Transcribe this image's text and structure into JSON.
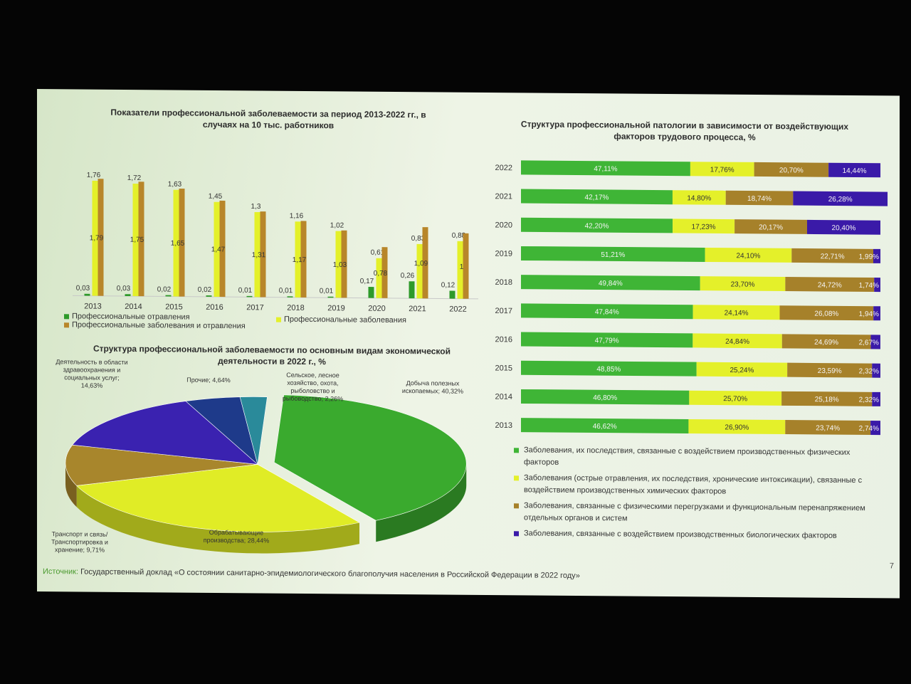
{
  "chart_data": [
    {
      "type": "bar",
      "title": "Показатели профессиональной заболеваемости за период 2013-2022 гг., в случаях на 10 тыс. работников",
      "categories": [
        "2013",
        "2014",
        "2015",
        "2016",
        "2017",
        "2018",
        "2019",
        "2020",
        "2021",
        "2022"
      ],
      "series": [
        {
          "name": "Профессиональные отравления",
          "color": "#2e9a2a",
          "values": [
            0.03,
            0.03,
            0.02,
            0.02,
            0.01,
            0.01,
            0.01,
            0.17,
            0.26,
            0.12
          ],
          "labels": [
            "0,03",
            "0,03",
            "0,02",
            "0,02",
            "0,01",
            "0,01",
            "0,01",
            "0,17",
            "0,26",
            "0,12"
          ]
        },
        {
          "name": "Профессиональные заболевания",
          "color": "#e4f02a",
          "values": [
            1.76,
            1.72,
            1.63,
            1.45,
            1.3,
            1.16,
            1.02,
            0.61,
            0.83,
            0.88
          ],
          "labels": [
            "1,76",
            "1,72",
            "1,63",
            "1,45",
            "1,3",
            "1,16",
            "1,02",
            "0,61",
            "0,83",
            "0,88"
          ]
        },
        {
          "name": "Профессиональные заболевания и отравления",
          "color": "#b8862a",
          "values": [
            1.79,
            1.75,
            1.65,
            1.47,
            1.31,
            1.17,
            1.03,
            0.78,
            1.09,
            1.0
          ],
          "labels": [
            "1,79",
            "1,75",
            "1,65",
            "1,47",
            "1,31",
            "1,17",
            "1,03",
            "0,78",
            "1,09",
            "1"
          ]
        }
      ],
      "ylim": [
        0,
        1.85
      ],
      "legend_position": "bottom"
    },
    {
      "type": "bar",
      "orientation": "horizontal",
      "stacked": true,
      "title": "Структура профессиональной патологии в зависимости от воздействующих факторов трудового процесса, %",
      "categories": [
        "2022",
        "2021",
        "2020",
        "2019",
        "2018",
        "2017",
        "2016",
        "2015",
        "2014",
        "2013"
      ],
      "series": [
        {
          "name": "Заболевания, их последствия, связанные с воздействием производственных физических факторов",
          "color": "#3fb536",
          "values": [
            47.11,
            42.17,
            42.2,
            51.21,
            49.84,
            47.84,
            47.79,
            48.85,
            46.8,
            46.62
          ],
          "labels": [
            "47,11%",
            "42,17%",
            "42,20%",
            "51,21%",
            "49,84%",
            "47,84%",
            "47,79%",
            "48,85%",
            "46,80%",
            "46,62%"
          ]
        },
        {
          "name": "Заболевания (острые отравления, их последствия, хронические интоксикации), связанные с воздействием производственных химических факторов",
          "color": "#e4f02a",
          "values": [
            17.76,
            14.8,
            17.23,
            24.1,
            23.7,
            24.14,
            24.84,
            25.24,
            25.7,
            26.9
          ],
          "labels": [
            "17,76%",
            "14,80%",
            "17,23%",
            "24,10%",
            "23,70%",
            "24,14%",
            "24,84%",
            "25,24%",
            "25,70%",
            "26,90%"
          ]
        },
        {
          "name": "Заболевания, связанные с физическими перегрузками и функциональным перенапряжением отдельных органов и систем",
          "color": "#a6812a",
          "values": [
            20.7,
            18.74,
            20.17,
            22.71,
            24.72,
            26.08,
            24.69,
            23.59,
            25.18,
            23.74
          ],
          "labels": [
            "20,70%",
            "18,74%",
            "20,17%",
            "22,71%",
            "24,72%",
            "26,08%",
            "24,69%",
            "23,59%",
            "25,18%",
            "23,74%"
          ]
        },
        {
          "name": "Заболевания, связанные с воздействием производственных биологических факторов",
          "color": "#3a1aa8",
          "values": [
            14.44,
            26.28,
            20.4,
            1.99,
            1.74,
            1.94,
            2.67,
            2.32,
            2.32,
            2.74
          ],
          "labels": [
            "14,44%",
            "26,28%",
            "20,40%",
            "1,99%",
            "1,74%",
            "1,94%",
            "2,67%",
            "2,32%",
            "2,32%",
            "2,74%"
          ]
        }
      ],
      "xlim": [
        0,
        100
      ],
      "legend_position": "bottom"
    },
    {
      "type": "pie",
      "title": "Структура профессиональной заболеваемости по основным видам экономической деятельности в 2022 г., %",
      "slices": [
        {
          "label": "Добыча полезных ископаемых; 40,32%",
          "value": 40.32,
          "color": "#3aaa2e"
        },
        {
          "label": "Обрабатывающие производства; 28,44%",
          "value": 28.44,
          "color": "#e0ec26"
        },
        {
          "label": "Транспорт и связь/ Транспортировка и хранение; 9,71%",
          "value": 9.71,
          "color": "#a8862c"
        },
        {
          "label": "Деятельность в области здравоохранения и социальных услуг; 14,63%",
          "value": 14.63,
          "color": "#3a22b0"
        },
        {
          "label": "Прочие; 4,64%",
          "value": 4.64,
          "color": "#1e3a8a"
        },
        {
          "label": "Сельское, лесное хозяйство, охота, рыболовство и рыбоводство; 2,26%",
          "value": 2.26,
          "color": "#2a8a9a"
        }
      ]
    }
  ],
  "source": {
    "label": "Источник:",
    "text": "Государственный доклад «О состоянии санитарно-эпидемиологического благополучия населения в Российской Федерации в 2022 году»"
  },
  "page_number": "7"
}
